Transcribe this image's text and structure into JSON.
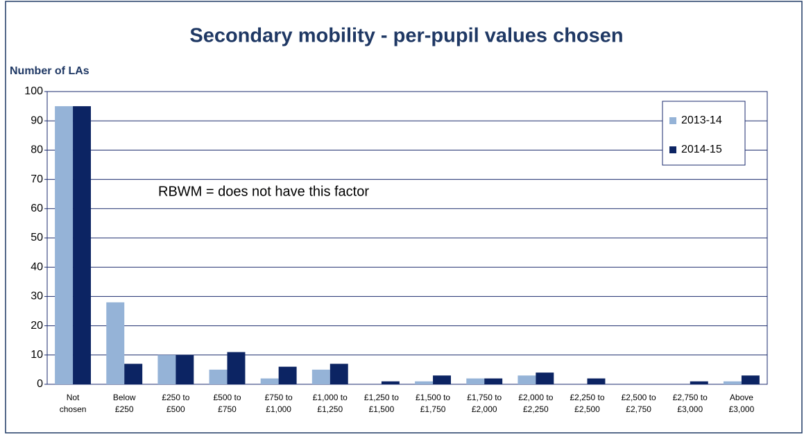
{
  "chart_data": {
    "type": "bar",
    "title": "Secondary mobility - per-pupil values chosen",
    "y_label": "Number of LAs",
    "annotation": "RBWM = does not  have this factor",
    "categories": [
      [
        "Not",
        "chosen"
      ],
      [
        "Below",
        "£250"
      ],
      [
        "£250 to",
        "£500"
      ],
      [
        "£500 to",
        "£750"
      ],
      [
        "£750 to",
        "£1,000"
      ],
      [
        "£1,000 to",
        "£1,250"
      ],
      [
        "£1,250 to",
        "£1,500"
      ],
      [
        "£1,500 to",
        "£1,750"
      ],
      [
        "£1,750 to",
        "£2,000"
      ],
      [
        "£2,000 to",
        "£2,250"
      ],
      [
        "£2,250 to",
        "£2,500"
      ],
      [
        "£2,500 to",
        "£2,750"
      ],
      [
        "£2,750 to",
        "£3,000"
      ],
      [
        "Above",
        "£3,000"
      ]
    ],
    "series": [
      {
        "name": "2013-14",
        "color": "#95b3d7",
        "values": [
          95,
          28,
          10,
          5,
          2,
          5,
          0,
          1,
          2,
          3,
          0,
          0,
          0,
          1
        ]
      },
      {
        "name": "2014-15",
        "color": "#0c2463",
        "values": [
          95,
          7,
          10,
          11,
          6,
          7,
          1,
          3,
          2,
          4,
          2,
          0,
          1,
          3
        ]
      }
    ],
    "ylim": [
      0,
      100
    ],
    "yticks": [
      0,
      10,
      20,
      30,
      40,
      50,
      60,
      70,
      80,
      90,
      100
    ],
    "grid": true,
    "legend": "top-right"
  }
}
